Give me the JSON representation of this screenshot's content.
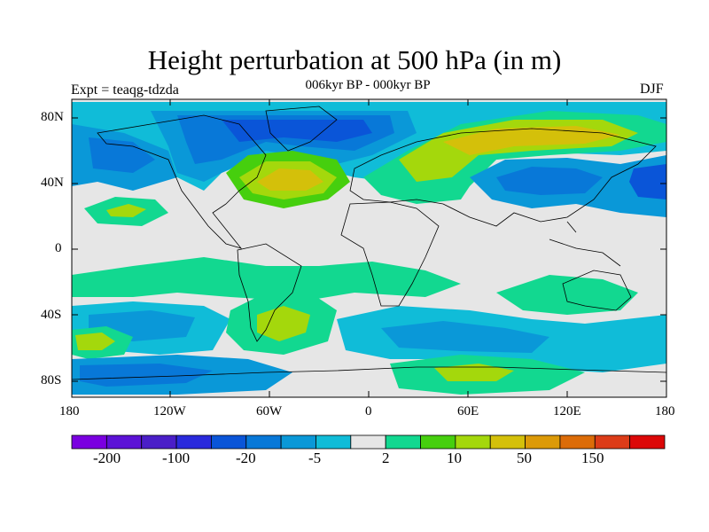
{
  "title": "Height perturbation at 500 hPa (in m)",
  "subtitle": "006kyr BP - 000kyr BP",
  "experiment": "Expt = teaqg-tdzda",
  "season": "DJF",
  "map": {
    "lat_ticks": [
      "80N",
      "40N",
      "0",
      "40S",
      "80S"
    ],
    "lon_ticks": [
      "180",
      "120W",
      "60W",
      "0",
      "60E",
      "120E",
      "180"
    ]
  },
  "colorbar": {
    "colors": [
      "#7a00e0",
      "#5c12d6",
      "#4a1ec8",
      "#2a2adc",
      "#0a55d8",
      "#0878d8",
      "#0a98d8",
      "#10bcd8",
      "#e6e6e6",
      "#12d890",
      "#46cf0e",
      "#a4d80c",
      "#d4c00a",
      "#dc9a08",
      "#dc6c08",
      "#dc3c18",
      "#dc0808"
    ],
    "labels": [
      "-200",
      "-100",
      "-20",
      "-5",
      "2",
      "10",
      "50",
      "150"
    ]
  }
}
